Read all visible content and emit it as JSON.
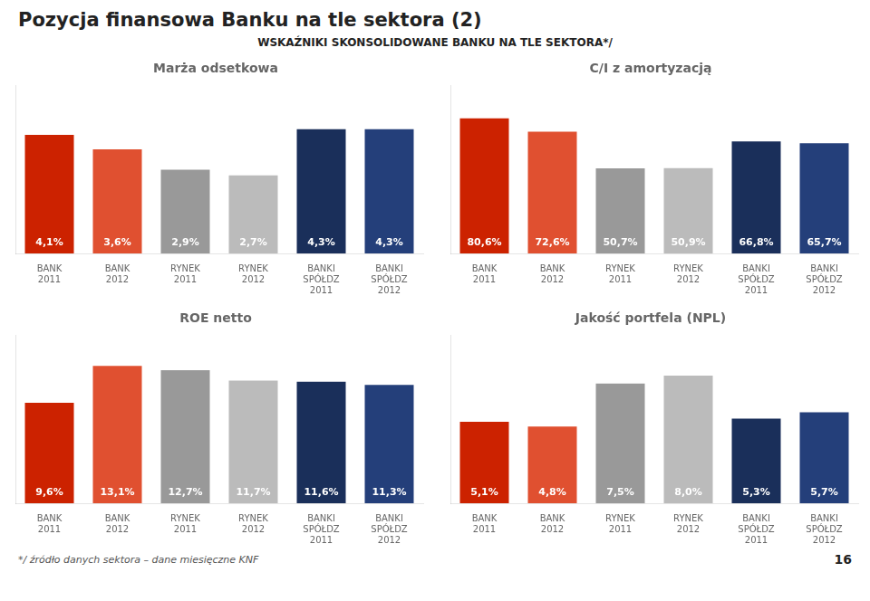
{
  "title": "Pozycja finansowa Banku na tle sektora (2)",
  "subtitle": "WSKAŹNIKI SKONSOLIDOWANE BANKU NA TLE SEKTORA*/",
  "annotations": [
    "*/ źródło danych sektora – dane miesięczne KNF",
    "16"
  ],
  "chart_data": [
    {
      "type": "bar",
      "title": "Marża odsetkowa",
      "categories": [
        "BANK\n2011",
        "BANK\n2012",
        "RYNEK\n2011",
        "RYNEK\n2012",
        "BANKI\nSPÓŁDZ\n2011",
        "BANKI\nSPÓŁDZ\n2012"
      ],
      "values": [
        4.1,
        3.6,
        2.9,
        2.7,
        4.3,
        4.3
      ],
      "value_labels": [
        "4,1%",
        "3,6%",
        "2,9%",
        "2,7%",
        "4,3%",
        "4,3%"
      ],
      "colors": [
        "#cc2200",
        "#e05030",
        "#999999",
        "#bbbbbb",
        "#1a2f5a",
        "#243f7a"
      ],
      "ylim": [
        0,
        5.8
      ],
      "grid": false,
      "tick_labels": "x"
    },
    {
      "type": "bar",
      "title": "C/I z amortyzacją",
      "categories": [
        "BANK\n2011",
        "BANK\n2012",
        "RYNEK\n2011",
        "RYNEK\n2012",
        "BANKI\nSPÓŁDZ\n2011",
        "BANKI\nSPÓŁDZ\n2012"
      ],
      "values": [
        80.6,
        72.6,
        50.7,
        50.9,
        66.8,
        65.7
      ],
      "value_labels": [
        "80,6%",
        "72,6%",
        "50,7%",
        "50,9%",
        "66,8%",
        "65,7%"
      ],
      "colors": [
        "#cc2200",
        "#e05030",
        "#999999",
        "#bbbbbb",
        "#1a2f5a",
        "#243f7a"
      ],
      "ylim": [
        0,
        100
      ],
      "grid": false,
      "tick_labels": "x"
    },
    {
      "type": "bar",
      "title": "ROE netto",
      "categories": [
        "BANK\n2011",
        "BANK\n2012",
        "RYNEK\n2011",
        "RYNEK\n2012",
        "BANKI\nSPÓŁDZ\n2011",
        "BANKI\nSPÓŁDZ\n2012"
      ],
      "values": [
        9.6,
        13.1,
        12.7,
        11.7,
        11.6,
        11.3
      ],
      "value_labels": [
        "9,6%",
        "13,1%",
        "12,7%",
        "11,7%",
        "11,6%",
        "11,3%"
      ],
      "colors": [
        "#cc2200",
        "#e05030",
        "#999999",
        "#bbbbbb",
        "#1a2f5a",
        "#243f7a"
      ],
      "ylim": [
        0,
        16
      ],
      "grid": false,
      "tick_labels": "x"
    },
    {
      "type": "bar",
      "title": "Jakość portfela (NPL)",
      "categories": [
        "BANK\n2011",
        "BANK\n2012",
        "RYNEK\n2011",
        "RYNEK\n2012",
        "BANKI\nSPÓŁDZ\n2011",
        "BANKI\nSPÓŁDZ\n2012"
      ],
      "values": [
        5.1,
        4.8,
        7.5,
        8.0,
        5.3,
        5.7
      ],
      "value_labels": [
        "5,1%",
        "4,8%",
        "7,5%",
        "8,0%",
        "5,3%",
        "5,7%"
      ],
      "colors": [
        "#cc2200",
        "#e05030",
        "#999999",
        "#bbbbbb",
        "#1a2f5a",
        "#243f7a"
      ],
      "ylim": [
        0,
        10.5
      ],
      "grid": false,
      "tick_labels": "x"
    }
  ]
}
